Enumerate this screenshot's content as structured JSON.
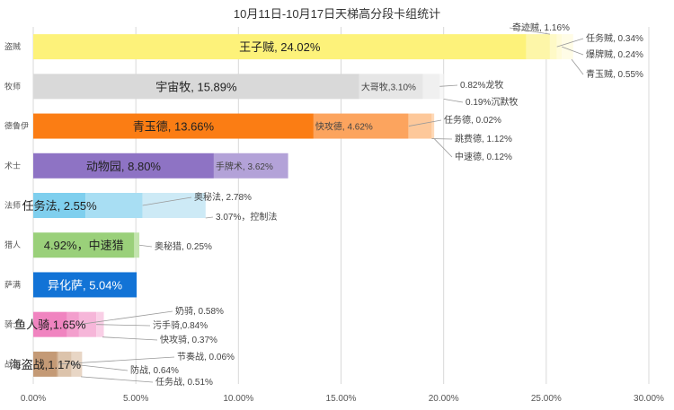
{
  "chart_data": {
    "type": "bar",
    "orientation": "horizontal",
    "stacked": true,
    "title": "10月11日-10月17日天梯高分段卡组统计",
    "xlim": [
      0,
      30
    ],
    "x_ticks": [
      "0.00%",
      "5.00%",
      "10.00%",
      "15.00%",
      "20.00%",
      "25.00%",
      "30.00%"
    ],
    "grid": "vertical",
    "categories": [
      "盗贼",
      "牧师",
      "德鲁伊",
      "术士",
      "法师",
      "猎人",
      "萨满",
      "骑士",
      "战士"
    ],
    "bars": [
      {
        "category": "盗贼",
        "segments": [
          {
            "value": 24.02,
            "color": "#fdf27a",
            "label": "王子贼, 24.02%",
            "inside": true
          },
          {
            "value": 1.16,
            "color": "#fdf6a8",
            "label": "奇迹贼, 1.16%",
            "inside": false
          },
          {
            "value": 0.34,
            "color": "#fef9c6",
            "label": "任务贼, 0.34%",
            "inside": false
          },
          {
            "value": 0.24,
            "color": "#fffbd8",
            "label": "爆牌贼, 0.24%",
            "inside": false
          },
          {
            "value": 0.55,
            "color": "#fffce6",
            "label": "青玉贼, 0.55%",
            "inside": false
          }
        ]
      },
      {
        "category": "牧师",
        "segments": [
          {
            "value": 15.89,
            "color": "#d9d9d9",
            "label": "宇宙牧, 15.89%",
            "inside": true
          },
          {
            "value": 3.1,
            "color": "#e6e6e6",
            "label": "大哥牧,3.10%",
            "inside": true
          },
          {
            "value": 0.82,
            "color": "#f0f0f0",
            "label": "0.82%龙牧",
            "inside": false
          },
          {
            "value": 0.19,
            "color": "#f7f7f7",
            "label": "0.19%沉默牧",
            "inside": false
          }
        ]
      },
      {
        "category": "德鲁伊",
        "segments": [
          {
            "value": 13.66,
            "color": "#fb7d14",
            "label": "青玉德, 13.66%",
            "inside": true
          },
          {
            "value": 4.62,
            "color": "#fca45e",
            "label": "快攻德, 4.62%",
            "inside": true
          },
          {
            "value": 0.02,
            "color": "#fdc08c",
            "label": "任务德, 0.02%",
            "inside": false
          },
          {
            "value": 1.12,
            "color": "#fdc89a",
            "label": "跳费德, 1.12%",
            "inside": false
          },
          {
            "value": 0.12,
            "color": "#fed9b8",
            "label": "中速德, 0.12%",
            "inside": false
          }
        ]
      },
      {
        "category": "术士",
        "segments": [
          {
            "value": 8.8,
            "color": "#8e73c4",
            "label": "动物园, 8.80%",
            "inside": true
          },
          {
            "value": 3.62,
            "color": "#b3a2d8",
            "label": "手牌术, 3.62%",
            "inside": true
          }
        ]
      },
      {
        "category": "法师",
        "segments": [
          {
            "value": 2.55,
            "color": "#7fcfee",
            "label": "任务法, 2.55%",
            "inside": true
          },
          {
            "value": 2.78,
            "color": "#a8def3",
            "label": "奥秘法, 2.78%",
            "inside": false
          },
          {
            "value": 3.07,
            "color": "#cdeaf6",
            "label": "3.07%，控制法",
            "inside": false
          }
        ]
      },
      {
        "category": "猎人",
        "segments": [
          {
            "value": 4.92,
            "color": "#9ad07a",
            "label": "4.92%，中速猎",
            "inside": true
          },
          {
            "value": 0.25,
            "color": "#c3e4ae",
            "label": "奥秘猎, 0.25%",
            "inside": false
          }
        ]
      },
      {
        "category": "萨满",
        "segments": [
          {
            "value": 5.04,
            "color": "#1273d6",
            "label": "异化萨, 5.04%",
            "inside": true,
            "light_text": true
          }
        ]
      },
      {
        "category": "骑士",
        "segments": [
          {
            "value": 1.65,
            "color": "#f084c0",
            "label": "鱼人骑,1.65%",
            "inside": true
          },
          {
            "value": 0.58,
            "color": "#f39fcd",
            "label": "奶骑, 0.58%",
            "inside": false
          },
          {
            "value": 0.84,
            "color": "#f6b6d9",
            "label": "污手骑,0.84%",
            "inside": false
          },
          {
            "value": 0.37,
            "color": "#f9cfe6",
            "label": "快攻骑, 0.37%",
            "inside": false
          }
        ]
      },
      {
        "category": "战士",
        "segments": [
          {
            "value": 1.17,
            "color": "#c49a76",
            "label": "海盗战,1.17%",
            "inside": true
          },
          {
            "value": 0.06,
            "color": "#d2b294",
            "label": "节奏战, 0.06%",
            "inside": false
          },
          {
            "value": 0.64,
            "color": "#dcc3ab",
            "label": "防战, 0.64%",
            "inside": false
          },
          {
            "value": 0.51,
            "color": "#e8d6c5",
            "label": "任务战, 0.51%",
            "inside": false
          }
        ]
      }
    ]
  }
}
